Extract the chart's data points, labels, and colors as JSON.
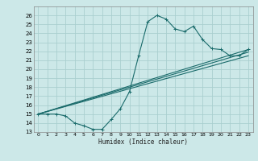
{
  "title": "",
  "xlabel": "Humidex (Indice chaleur)",
  "bg_color": "#cce8e8",
  "grid_color": "#aacfcf",
  "line_color": "#1a6b6b",
  "xlim": [
    -0.5,
    23.5
  ],
  "ylim": [
    13,
    27
  ],
  "xticks": [
    0,
    1,
    2,
    3,
    4,
    5,
    6,
    7,
    8,
    9,
    10,
    11,
    12,
    13,
    14,
    15,
    16,
    17,
    18,
    19,
    20,
    21,
    22,
    23
  ],
  "yticks": [
    13,
    14,
    15,
    16,
    17,
    18,
    19,
    20,
    21,
    22,
    23,
    24,
    25,
    26
  ],
  "series": [
    {
      "x": [
        0,
        1,
        2,
        3,
        4,
        5,
        6,
        7,
        8,
        9,
        10,
        11,
        12,
        13,
        14,
        15,
        16,
        17,
        18,
        19,
        20,
        21,
        22,
        23
      ],
      "y": [
        15.0,
        15.0,
        15.0,
        14.8,
        14.0,
        13.7,
        13.3,
        13.3,
        14.4,
        15.6,
        17.5,
        21.5,
        25.3,
        26.0,
        25.6,
        24.5,
        24.2,
        24.8,
        23.3,
        22.3,
        22.2,
        21.5,
        21.5,
        22.2
      ],
      "with_markers": true
    },
    {
      "x": [
        0,
        23
      ],
      "y": [
        15.0,
        22.2
      ],
      "with_markers": false
    },
    {
      "x": [
        0,
        23
      ],
      "y": [
        15.0,
        21.5
      ],
      "with_markers": false
    },
    {
      "x": [
        0,
        23
      ],
      "y": [
        15.0,
        21.9
      ],
      "with_markers": false
    }
  ]
}
